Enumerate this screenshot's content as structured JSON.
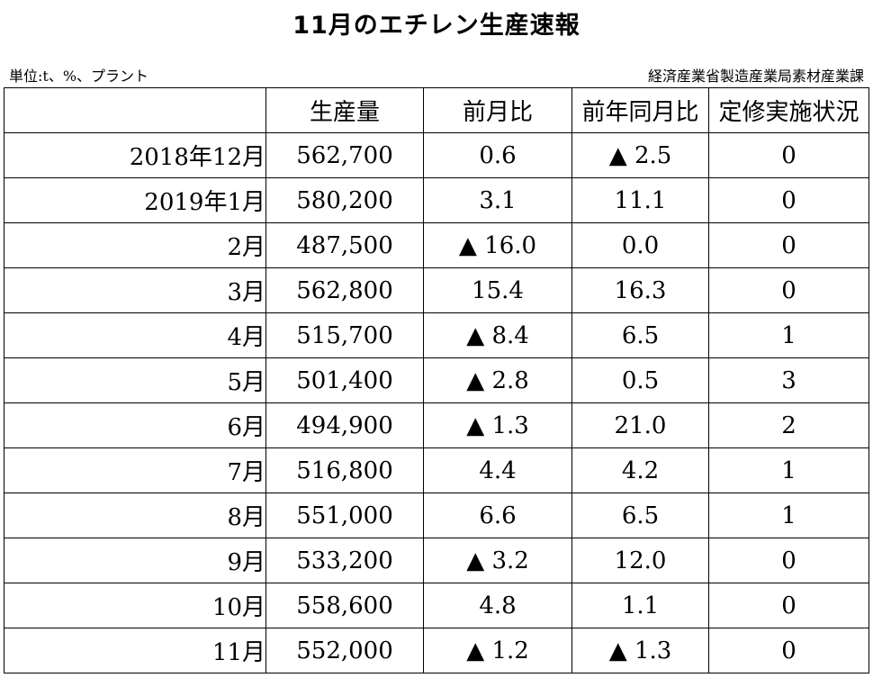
{
  "title": "11月のエチレン生産速報",
  "unit_note": "単位:t、%、プラント",
  "source": "経済産業省製造産業局素材産業課",
  "table": {
    "headers": [
      "",
      "生産量",
      "前月比",
      "前年同月比",
      "定修実施状況"
    ],
    "rows": [
      {
        "period": "2018年12月",
        "production": "562,700",
        "mom": "0.6",
        "yoy": "▲ 2.5",
        "maintenance": "0"
      },
      {
        "period": "2019年1月",
        "production": "580,200",
        "mom": "3.1",
        "yoy": "11.1",
        "maintenance": "0"
      },
      {
        "period": "2月",
        "production": "487,500",
        "mom": "▲ 16.0",
        "yoy": "0.0",
        "maintenance": "0"
      },
      {
        "period": "3月",
        "production": "562,800",
        "mom": "15.4",
        "yoy": "16.3",
        "maintenance": "0"
      },
      {
        "period": "4月",
        "production": "515,700",
        "mom": "▲ 8.4",
        "yoy": "6.5",
        "maintenance": "1"
      },
      {
        "period": "5月",
        "production": "501,400",
        "mom": "▲ 2.8",
        "yoy": "0.5",
        "maintenance": "3"
      },
      {
        "period": "6月",
        "production": "494,900",
        "mom": "▲ 1.3",
        "yoy": "21.0",
        "maintenance": "2"
      },
      {
        "period": "7月",
        "production": "516,800",
        "mom": "4.4",
        "yoy": "4.2",
        "maintenance": "1"
      },
      {
        "period": "8月",
        "production": "551,000",
        "mom": "6.6",
        "yoy": "6.5",
        "maintenance": "1"
      },
      {
        "period": "9月",
        "production": "533,200",
        "mom": "▲ 3.2",
        "yoy": "12.0",
        "maintenance": "0"
      },
      {
        "period": "10月",
        "production": "558,600",
        "mom": "4.8",
        "yoy": "1.1",
        "maintenance": "0"
      },
      {
        "period": "11月",
        "production": "552,000",
        "mom": "▲ 1.2",
        "yoy": "▲ 1.3",
        "maintenance": "0"
      }
    ]
  }
}
